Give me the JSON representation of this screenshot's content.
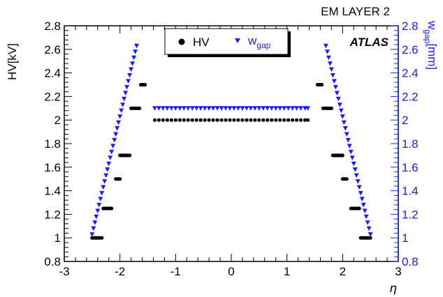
{
  "chart_data": {
    "type": "scatter",
    "title": "EM LAYER 2",
    "experiment_label": "ATLAS",
    "xlabel": "η",
    "ylabel_left": "HV[kV]",
    "ylabel_right": {
      "base": "w",
      "sub": "gap",
      "unit": "[mm]"
    },
    "xlim": [
      -3,
      3
    ],
    "ylim": [
      0.8,
      2.8
    ],
    "x_ticks": [
      "-3",
      "-2",
      "-1",
      "0",
      "1",
      "2",
      "3"
    ],
    "y_ticks": [
      "0.8",
      "1",
      "1.2",
      "1.4",
      "1.6",
      "1.8",
      "2",
      "2.2",
      "2.4",
      "2.6",
      "2.8"
    ],
    "y2_ticks": [
      "0.8",
      "1",
      "1.2",
      "1.4",
      "1.6",
      "1.8",
      "2",
      "2.2",
      "2.4",
      "2.6",
      "2.8"
    ],
    "grid": false,
    "legend_position": "top-center",
    "series": [
      {
        "name": "HV",
        "marker": "circle",
        "color": "#000000",
        "axis": "left",
        "points": [
          {
            "x": -2.5,
            "y": 1.0
          },
          {
            "x": -2.475,
            "y": 1.0
          },
          {
            "x": -2.45,
            "y": 1.0
          },
          {
            "x": -2.425,
            "y": 1.0
          },
          {
            "x": -2.4,
            "y": 1.0
          },
          {
            "x": -2.375,
            "y": 1.0
          },
          {
            "x": -2.35,
            "y": 1.0
          },
          {
            "x": -2.325,
            "y": 1.0
          },
          {
            "x": -2.3,
            "y": 1.25
          },
          {
            "x": -2.275,
            "y": 1.25
          },
          {
            "x": -2.25,
            "y": 1.25
          },
          {
            "x": -2.225,
            "y": 1.25
          },
          {
            "x": -2.2,
            "y": 1.25
          },
          {
            "x": -2.175,
            "y": 1.25
          },
          {
            "x": -2.15,
            "y": 1.25
          },
          {
            "x": -2.075,
            "y": 1.5
          },
          {
            "x": -2.05,
            "y": 1.5
          },
          {
            "x": -2.025,
            "y": 1.5
          },
          {
            "x": -2.0,
            "y": 1.5
          },
          {
            "x": -2.0,
            "y": 1.7
          },
          {
            "x": -1.975,
            "y": 1.7
          },
          {
            "x": -1.95,
            "y": 1.7
          },
          {
            "x": -1.925,
            "y": 1.7
          },
          {
            "x": -1.9,
            "y": 1.7
          },
          {
            "x": -1.875,
            "y": 1.7
          },
          {
            "x": -1.85,
            "y": 1.7
          },
          {
            "x": -1.825,
            "y": 1.7
          },
          {
            "x": -1.8,
            "y": 2.1
          },
          {
            "x": -1.775,
            "y": 2.1
          },
          {
            "x": -1.75,
            "y": 2.1
          },
          {
            "x": -1.725,
            "y": 2.1
          },
          {
            "x": -1.7,
            "y": 2.1
          },
          {
            "x": -1.675,
            "y": 2.1
          },
          {
            "x": -1.65,
            "y": 2.1
          },
          {
            "x": -1.625,
            "y": 2.3
          },
          {
            "x": -1.6,
            "y": 2.3
          },
          {
            "x": -1.575,
            "y": 2.3
          },
          {
            "x": -1.55,
            "y": 2.3
          },
          {
            "x": -1.375,
            "y": 2.0
          },
          {
            "x": -1.3,
            "y": 2.0
          },
          {
            "x": -1.225,
            "y": 2.0
          },
          {
            "x": -1.15,
            "y": 2.0
          },
          {
            "x": -1.075,
            "y": 2.0
          },
          {
            "x": -1.0,
            "y": 2.0
          },
          {
            "x": -0.925,
            "y": 2.0
          },
          {
            "x": -0.85,
            "y": 2.0
          },
          {
            "x": -0.775,
            "y": 2.0
          },
          {
            "x": -0.7,
            "y": 2.0
          },
          {
            "x": -0.625,
            "y": 2.0
          },
          {
            "x": -0.55,
            "y": 2.0
          },
          {
            "x": -0.475,
            "y": 2.0
          },
          {
            "x": -0.4,
            "y": 2.0
          },
          {
            "x": -0.325,
            "y": 2.0
          },
          {
            "x": -0.25,
            "y": 2.0
          },
          {
            "x": -0.175,
            "y": 2.0
          },
          {
            "x": -0.1,
            "y": 2.0
          },
          {
            "x": -0.025,
            "y": 2.0
          },
          {
            "x": 0.05,
            "y": 2.0
          },
          {
            "x": 0.125,
            "y": 2.0
          },
          {
            "x": 0.2,
            "y": 2.0
          },
          {
            "x": 0.275,
            "y": 2.0
          },
          {
            "x": 0.35,
            "y": 2.0
          },
          {
            "x": 0.425,
            "y": 2.0
          },
          {
            "x": 0.5,
            "y": 2.0
          },
          {
            "x": 0.575,
            "y": 2.0
          },
          {
            "x": 0.65,
            "y": 2.0
          },
          {
            "x": 0.725,
            "y": 2.0
          },
          {
            "x": 0.8,
            "y": 2.0
          },
          {
            "x": 0.875,
            "y": 2.0
          },
          {
            "x": 0.95,
            "y": 2.0
          },
          {
            "x": 1.025,
            "y": 2.0
          },
          {
            "x": 1.1,
            "y": 2.0
          },
          {
            "x": 1.175,
            "y": 2.0
          },
          {
            "x": 1.25,
            "y": 2.0
          },
          {
            "x": 1.325,
            "y": 2.0
          },
          {
            "x": 1.375,
            "y": 2.0
          },
          {
            "x": 1.55,
            "y": 2.3
          },
          {
            "x": 1.575,
            "y": 2.3
          },
          {
            "x": 1.6,
            "y": 2.3
          },
          {
            "x": 1.625,
            "y": 2.3
          },
          {
            "x": 1.65,
            "y": 2.1
          },
          {
            "x": 1.675,
            "y": 2.1
          },
          {
            "x": 1.7,
            "y": 2.1
          },
          {
            "x": 1.725,
            "y": 2.1
          },
          {
            "x": 1.75,
            "y": 2.1
          },
          {
            "x": 1.775,
            "y": 2.1
          },
          {
            "x": 1.8,
            "y": 2.1
          },
          {
            "x": 1.825,
            "y": 1.7
          },
          {
            "x": 1.85,
            "y": 1.7
          },
          {
            "x": 1.875,
            "y": 1.7
          },
          {
            "x": 1.9,
            "y": 1.7
          },
          {
            "x": 1.925,
            "y": 1.7
          },
          {
            "x": 1.95,
            "y": 1.7
          },
          {
            "x": 1.975,
            "y": 1.7
          },
          {
            "x": 2.0,
            "y": 1.7
          },
          {
            "x": 2.0,
            "y": 1.5
          },
          {
            "x": 2.025,
            "y": 1.5
          },
          {
            "x": 2.05,
            "y": 1.5
          },
          {
            "x": 2.075,
            "y": 1.5
          },
          {
            "x": 2.15,
            "y": 1.25
          },
          {
            "x": 2.175,
            "y": 1.25
          },
          {
            "x": 2.2,
            "y": 1.25
          },
          {
            "x": 2.225,
            "y": 1.25
          },
          {
            "x": 2.25,
            "y": 1.25
          },
          {
            "x": 2.275,
            "y": 1.25
          },
          {
            "x": 2.3,
            "y": 1.25
          },
          {
            "x": 2.325,
            "y": 1.0
          },
          {
            "x": 2.35,
            "y": 1.0
          },
          {
            "x": 2.375,
            "y": 1.0
          },
          {
            "x": 2.4,
            "y": 1.0
          },
          {
            "x": 2.425,
            "y": 1.0
          },
          {
            "x": 2.45,
            "y": 1.0
          },
          {
            "x": 2.475,
            "y": 1.0
          },
          {
            "x": 2.5,
            "y": 1.0
          }
        ]
      },
      {
        "name": "w_gap",
        "legend_label": {
          "base": "w",
          "sub": "gap"
        },
        "marker": "triangle-down",
        "color": "#1a1aff",
        "axis": "right",
        "points": [
          {
            "x": -2.5,
            "y": 1.03
          },
          {
            "x": -2.475,
            "y": 1.08
          },
          {
            "x": -2.45,
            "y": 1.13
          },
          {
            "x": -2.425,
            "y": 1.18
          },
          {
            "x": -2.4,
            "y": 1.23
          },
          {
            "x": -2.375,
            "y": 1.28
          },
          {
            "x": -2.35,
            "y": 1.33
          },
          {
            "x": -2.325,
            "y": 1.38
          },
          {
            "x": -2.3,
            "y": 1.43
          },
          {
            "x": -2.275,
            "y": 1.48
          },
          {
            "x": -2.25,
            "y": 1.53
          },
          {
            "x": -2.225,
            "y": 1.58
          },
          {
            "x": -2.2,
            "y": 1.63
          },
          {
            "x": -2.175,
            "y": 1.68
          },
          {
            "x": -2.15,
            "y": 1.73
          },
          {
            "x": -2.125,
            "y": 1.78
          },
          {
            "x": -2.1,
            "y": 1.83
          },
          {
            "x": -2.075,
            "y": 1.88
          },
          {
            "x": -2.05,
            "y": 1.93
          },
          {
            "x": -2.025,
            "y": 1.98
          },
          {
            "x": -2.0,
            "y": 2.03
          },
          {
            "x": -1.975,
            "y": 2.08
          },
          {
            "x": -1.95,
            "y": 2.13
          },
          {
            "x": -1.925,
            "y": 2.18
          },
          {
            "x": -1.9,
            "y": 2.23
          },
          {
            "x": -1.875,
            "y": 2.28
          },
          {
            "x": -1.85,
            "y": 2.33
          },
          {
            "x": -1.825,
            "y": 2.38
          },
          {
            "x": -1.8,
            "y": 2.43
          },
          {
            "x": -1.775,
            "y": 2.48
          },
          {
            "x": -1.75,
            "y": 2.53
          },
          {
            "x": -1.725,
            "y": 2.58
          },
          {
            "x": -1.7,
            "y": 2.63
          },
          {
            "x": -1.375,
            "y": 2.1
          },
          {
            "x": -1.3,
            "y": 2.1
          },
          {
            "x": -1.225,
            "y": 2.1
          },
          {
            "x": -1.15,
            "y": 2.1
          },
          {
            "x": -1.075,
            "y": 2.1
          },
          {
            "x": -1.0,
            "y": 2.1
          },
          {
            "x": -0.925,
            "y": 2.1
          },
          {
            "x": -0.85,
            "y": 2.1
          },
          {
            "x": -0.775,
            "y": 2.1
          },
          {
            "x": -0.7,
            "y": 2.1
          },
          {
            "x": -0.625,
            "y": 2.1
          },
          {
            "x": -0.55,
            "y": 2.1
          },
          {
            "x": -0.475,
            "y": 2.1
          },
          {
            "x": -0.4,
            "y": 2.1
          },
          {
            "x": -0.325,
            "y": 2.1
          },
          {
            "x": -0.25,
            "y": 2.1
          },
          {
            "x": -0.175,
            "y": 2.1
          },
          {
            "x": -0.1,
            "y": 2.1
          },
          {
            "x": -0.025,
            "y": 2.1
          },
          {
            "x": 0.05,
            "y": 2.1
          },
          {
            "x": 0.125,
            "y": 2.1
          },
          {
            "x": 0.2,
            "y": 2.1
          },
          {
            "x": 0.275,
            "y": 2.1
          },
          {
            "x": 0.35,
            "y": 2.1
          },
          {
            "x": 0.425,
            "y": 2.1
          },
          {
            "x": 0.5,
            "y": 2.1
          },
          {
            "x": 0.575,
            "y": 2.1
          },
          {
            "x": 0.65,
            "y": 2.1
          },
          {
            "x": 0.725,
            "y": 2.1
          },
          {
            "x": 0.8,
            "y": 2.1
          },
          {
            "x": 0.875,
            "y": 2.1
          },
          {
            "x": 0.95,
            "y": 2.1
          },
          {
            "x": 1.025,
            "y": 2.1
          },
          {
            "x": 1.1,
            "y": 2.1
          },
          {
            "x": 1.175,
            "y": 2.1
          },
          {
            "x": 1.25,
            "y": 2.1
          },
          {
            "x": 1.325,
            "y": 2.1
          },
          {
            "x": 1.375,
            "y": 2.1
          },
          {
            "x": 1.7,
            "y": 2.63
          },
          {
            "x": 1.725,
            "y": 2.58
          },
          {
            "x": 1.75,
            "y": 2.53
          },
          {
            "x": 1.775,
            "y": 2.48
          },
          {
            "x": 1.8,
            "y": 2.43
          },
          {
            "x": 1.825,
            "y": 2.38
          },
          {
            "x": 1.85,
            "y": 2.33
          },
          {
            "x": 1.875,
            "y": 2.28
          },
          {
            "x": 1.9,
            "y": 2.23
          },
          {
            "x": 1.925,
            "y": 2.18
          },
          {
            "x": 1.95,
            "y": 2.13
          },
          {
            "x": 1.975,
            "y": 2.08
          },
          {
            "x": 2.0,
            "y": 2.03
          },
          {
            "x": 2.025,
            "y": 1.98
          },
          {
            "x": 2.05,
            "y": 1.93
          },
          {
            "x": 2.075,
            "y": 1.88
          },
          {
            "x": 2.1,
            "y": 1.83
          },
          {
            "x": 2.125,
            "y": 1.78
          },
          {
            "x": 2.15,
            "y": 1.73
          },
          {
            "x": 2.175,
            "y": 1.68
          },
          {
            "x": 2.2,
            "y": 1.63
          },
          {
            "x": 2.225,
            "y": 1.58
          },
          {
            "x": 2.25,
            "y": 1.53
          },
          {
            "x": 2.275,
            "y": 1.48
          },
          {
            "x": 2.3,
            "y": 1.43
          },
          {
            "x": 2.325,
            "y": 1.38
          },
          {
            "x": 2.35,
            "y": 1.33
          },
          {
            "x": 2.375,
            "y": 1.28
          },
          {
            "x": 2.4,
            "y": 1.23
          },
          {
            "x": 2.425,
            "y": 1.18
          },
          {
            "x": 2.45,
            "y": 1.13
          },
          {
            "x": 2.475,
            "y": 1.08
          },
          {
            "x": 2.5,
            "y": 1.03
          }
        ]
      }
    ]
  }
}
